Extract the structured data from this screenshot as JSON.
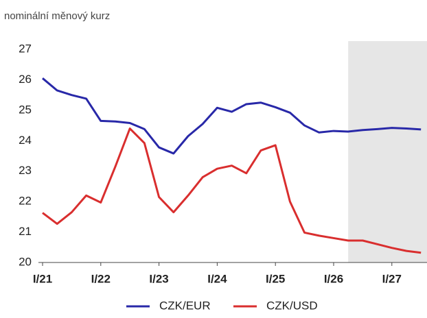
{
  "chart_data": {
    "type": "line",
    "subtitle": "nominální měnový kurz",
    "categories": [
      "I/21",
      null,
      null,
      null,
      "I/22",
      null,
      null,
      null,
      "I/23",
      null,
      null,
      null,
      "I/24",
      null,
      null,
      null,
      "I/25",
      null,
      null,
      null,
      "I/26",
      null,
      null,
      null,
      "I/27",
      null,
      null
    ],
    "series": [
      {
        "name": "CZK/EUR",
        "color": "#2828a8",
        "values": [
          26.05,
          25.65,
          25.5,
          25.38,
          24.65,
          24.63,
          24.58,
          24.38,
          23.78,
          23.58,
          24.15,
          24.55,
          25.08,
          24.95,
          25.2,
          25.25,
          25.1,
          24.92,
          24.5,
          24.27,
          24.32,
          24.3,
          24.35,
          24.38,
          24.42,
          24.4,
          24.37
        ]
      },
      {
        "name": "CZK/USD",
        "color": "#d92e2e",
        "values": [
          21.63,
          21.27,
          21.65,
          22.2,
          21.97,
          23.15,
          24.4,
          23.92,
          22.15,
          21.65,
          22.2,
          22.8,
          23.08,
          23.18,
          22.93,
          23.68,
          23.85,
          22.0,
          20.98,
          20.88,
          20.8,
          20.72,
          20.72,
          20.6,
          20.48,
          20.38,
          20.32
        ]
      }
    ],
    "ylim": [
      20,
      27
    ],
    "yticks": [
      20,
      21,
      22,
      23,
      24,
      25,
      26,
      27
    ],
    "grid": false,
    "shaded_from_category": 21,
    "shade_color": "#e6e6e6",
    "legend": "bottom"
  }
}
